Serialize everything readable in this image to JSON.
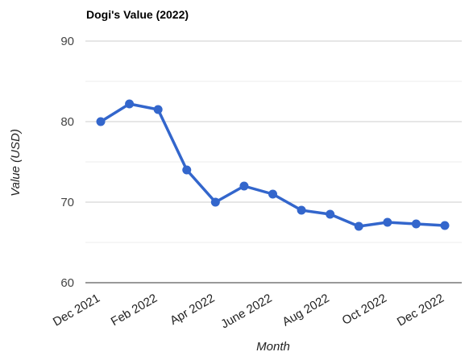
{
  "chart_data": {
    "type": "line",
    "title": "Dogi's Value (2022)",
    "xlabel": "Month",
    "ylabel": "Value (USD)",
    "ylim": [
      60,
      90
    ],
    "yticks": [
      "60",
      "70",
      "80",
      "90"
    ],
    "x_tick_labels": [
      "Dec 2021",
      "Feb 2022",
      "Apr 2022",
      "June 2022",
      "Aug 2022",
      "Oct 2022",
      "Dec 2022"
    ],
    "categories": [
      "Dec 2021",
      "Jan 2022",
      "Feb 2022",
      "Mar 2022",
      "Apr 2022",
      "May 2022",
      "June 2022",
      "Jul 2022",
      "Aug 2022",
      "Sep 2022",
      "Oct 2022",
      "Nov 2022",
      "Dec 2022"
    ],
    "values": [
      80.0,
      82.2,
      81.5,
      74.0,
      70.0,
      72.0,
      71.0,
      69.0,
      68.5,
      67.0,
      67.5,
      67.3,
      67.1
    ],
    "grid": true,
    "legend": "none",
    "color": "#3366cc"
  }
}
